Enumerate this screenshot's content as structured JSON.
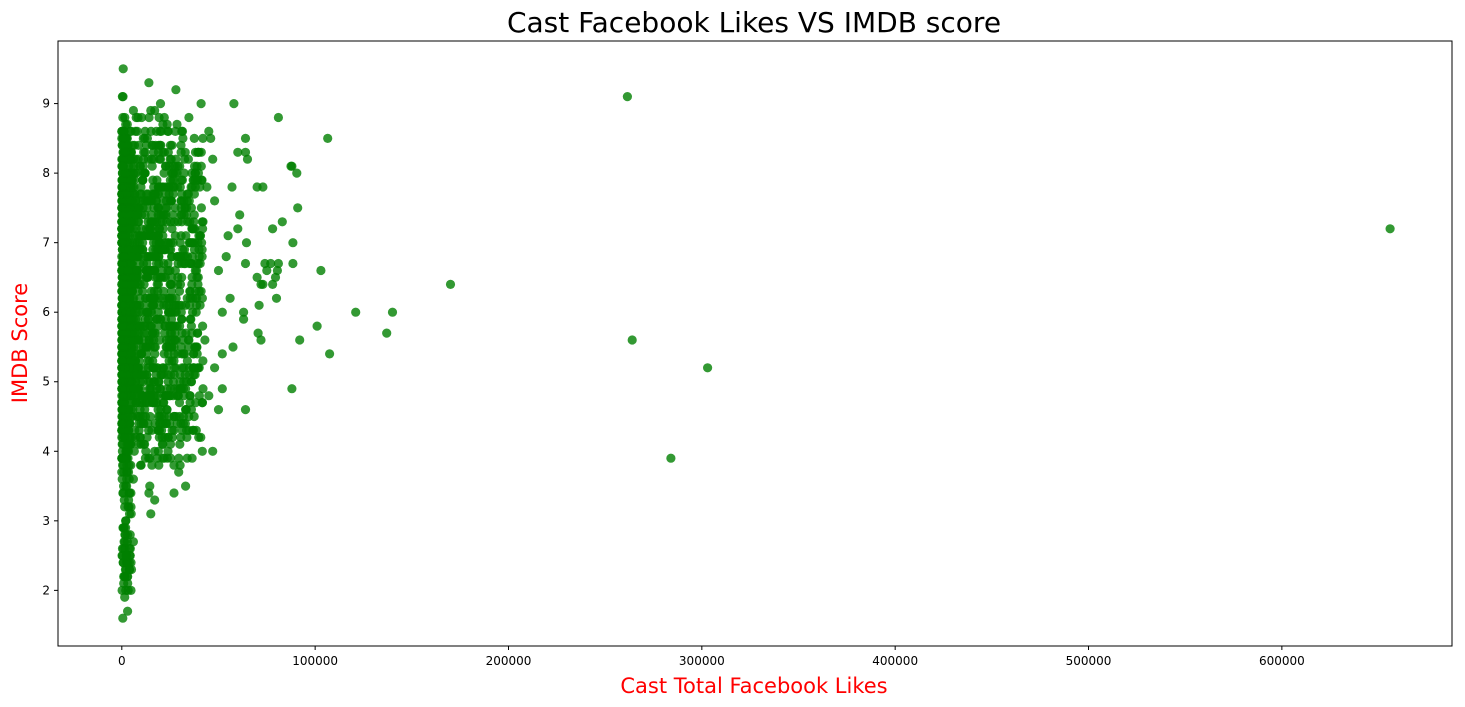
{
  "chart_data": {
    "type": "scatter",
    "title": "Cast Facebook Likes VS IMDB score",
    "xlabel": "Cast Total Facebook Likes",
    "ylabel": "IMDB Score",
    "label_color": "#ff0000",
    "point_color": "#008000",
    "point_alpha": 0.8,
    "xlim": [
      -33000,
      688000
    ],
    "ylim": [
      1.2,
      9.9
    ],
    "xticks": [
      0,
      100000,
      200000,
      300000,
      400000,
      500000,
      600000
    ],
    "yticks": [
      2,
      3,
      4,
      5,
      6,
      7,
      8,
      9
    ],
    "grid": false,
    "legend": "none",
    "points": [
      [
        656000,
        7.2
      ],
      [
        261500,
        9.1
      ],
      [
        264000,
        5.6
      ],
      [
        303000,
        5.2
      ],
      [
        284000,
        3.9
      ],
      [
        170000,
        6.4
      ],
      [
        140000,
        6.0
      ],
      [
        137000,
        5.7
      ],
      [
        121000,
        6.0
      ],
      [
        107500,
        5.4
      ],
      [
        106500,
        8.5
      ],
      [
        103000,
        6.6
      ],
      [
        101000,
        5.8
      ],
      [
        92000,
        5.6
      ],
      [
        91000,
        7.5
      ],
      [
        90500,
        8.0
      ],
      [
        88000,
        8.1
      ],
      [
        87500,
        8.1
      ],
      [
        88500,
        7.0
      ],
      [
        88500,
        6.7
      ],
      [
        88000,
        4.9
      ],
      [
        83000,
        7.3
      ],
      [
        81000,
        8.8
      ],
      [
        81000,
        6.7
      ],
      [
        80500,
        6.6
      ],
      [
        80000,
        6.2
      ],
      [
        79500,
        6.5
      ],
      [
        78000,
        6.4
      ],
      [
        78000,
        7.2
      ],
      [
        77000,
        6.7
      ],
      [
        75000,
        6.6
      ],
      [
        74000,
        6.7
      ],
      [
        73000,
        7.8
      ],
      [
        73000,
        6.4
      ],
      [
        72000,
        5.6
      ],
      [
        72000,
        6.4
      ],
      [
        71000,
        6.1
      ],
      [
        70500,
        5.7
      ],
      [
        70000,
        6.5
      ],
      [
        70000,
        7.8
      ],
      [
        64000,
        8.5
      ],
      [
        64000,
        8.3
      ],
      [
        65000,
        8.2
      ],
      [
        64000,
        6.7
      ],
      [
        64500,
        7.0
      ],
      [
        64000,
        4.6
      ],
      [
        63000,
        6.0
      ],
      [
        63000,
        5.9
      ],
      [
        60000,
        7.2
      ],
      [
        60000,
        8.3
      ],
      [
        61000,
        7.4
      ],
      [
        58000,
        9.0
      ],
      [
        57000,
        7.8
      ],
      [
        57500,
        5.5
      ],
      [
        56000,
        6.2
      ],
      [
        55000,
        7.1
      ],
      [
        54000,
        6.8
      ],
      [
        52000,
        4.9
      ],
      [
        50000,
        4.6
      ],
      [
        47000,
        4.0
      ],
      [
        41000,
        9.0
      ],
      [
        28000,
        9.2
      ],
      [
        14000,
        9.3
      ],
      [
        700,
        9.5
      ],
      [
        600,
        9.1
      ],
      [
        300,
        9.1
      ],
      [
        6000,
        8.9
      ],
      [
        15000,
        8.9
      ],
      [
        17000,
        8.9
      ],
      [
        20000,
        9.0
      ],
      [
        22000,
        8.8
      ],
      [
        31000,
        8.6
      ],
      [
        45000,
        8.6
      ],
      [
        46000,
        8.5
      ],
      [
        40000,
        8.3
      ],
      [
        43000,
        5.6
      ],
      [
        45000,
        4.8
      ],
      [
        42000,
        4.9
      ],
      [
        39000,
        5.4
      ],
      [
        33000,
        4.6
      ],
      [
        33000,
        3.5
      ],
      [
        27000,
        3.4
      ],
      [
        27000,
        3.8
      ],
      [
        27000,
        4.5
      ],
      [
        29000,
        4.9
      ],
      [
        30000,
        4.9
      ],
      [
        24000,
        4.2
      ],
      [
        24000,
        5.1
      ],
      [
        20000,
        4.9
      ],
      [
        19000,
        4.3
      ],
      [
        17000,
        4.0
      ],
      [
        17000,
        3.3
      ],
      [
        15000,
        3.1
      ],
      [
        14500,
        3.5
      ],
      [
        14000,
        3.4
      ],
      [
        10000,
        3.8
      ],
      [
        6000,
        3.6
      ],
      [
        6000,
        2.7
      ],
      [
        5000,
        2.3
      ],
      [
        4000,
        2.3
      ],
      [
        3000,
        1.7
      ],
      [
        500,
        1.6
      ],
      [
        1500,
        1.9
      ],
      [
        2000,
        2.0
      ],
      [
        1000,
        2.2
      ],
      [
        800,
        2.4
      ],
      [
        2500,
        2.5
      ],
      [
        1200,
        2.7
      ],
      [
        3000,
        2.8
      ],
      [
        600,
        2.9
      ],
      [
        2000,
        3.0
      ],
      [
        4000,
        3.1
      ],
      [
        1500,
        3.2
      ],
      [
        3500,
        3.3
      ],
      [
        700,
        3.4
      ],
      [
        2500,
        3.5
      ],
      [
        30000,
        4.1
      ],
      [
        35000,
        5.2
      ],
      [
        38000,
        5.5
      ],
      [
        36000,
        5.0
      ],
      [
        48000,
        5.2
      ],
      [
        52000,
        5.4
      ],
      [
        52000,
        6.0
      ],
      [
        50000,
        6.6
      ],
      [
        48000,
        7.6
      ],
      [
        47000,
        8.2
      ],
      [
        44000,
        7.8
      ],
      [
        42000,
        7.3
      ],
      [
        38000,
        8.0
      ],
      [
        36000,
        7.5
      ],
      [
        34000,
        6.8
      ],
      [
        33000,
        6.1
      ],
      [
        31000,
        7.4
      ],
      [
        29000,
        8.1
      ],
      [
        27000,
        7.9
      ],
      [
        26000,
        5.8
      ],
      [
        25000,
        6.4
      ],
      [
        24000,
        8.6
      ],
      [
        23000,
        7.6
      ],
      [
        22000,
        5.4
      ],
      [
        21000,
        6.9
      ],
      [
        20000,
        8.2
      ],
      [
        19000,
        7.1
      ],
      [
        18000,
        5.9
      ],
      [
        17000,
        6.6
      ],
      [
        16000,
        8.4
      ],
      [
        15000,
        7.3
      ],
      [
        14000,
        5.6
      ],
      [
        13000,
        6.2
      ],
      [
        12000,
        8.0
      ],
      [
        11000,
        4.8
      ],
      [
        10000,
        7.7
      ],
      [
        9000,
        6.5
      ],
      [
        8000,
        5.2
      ],
      [
        7000,
        7.4
      ]
    ]
  }
}
